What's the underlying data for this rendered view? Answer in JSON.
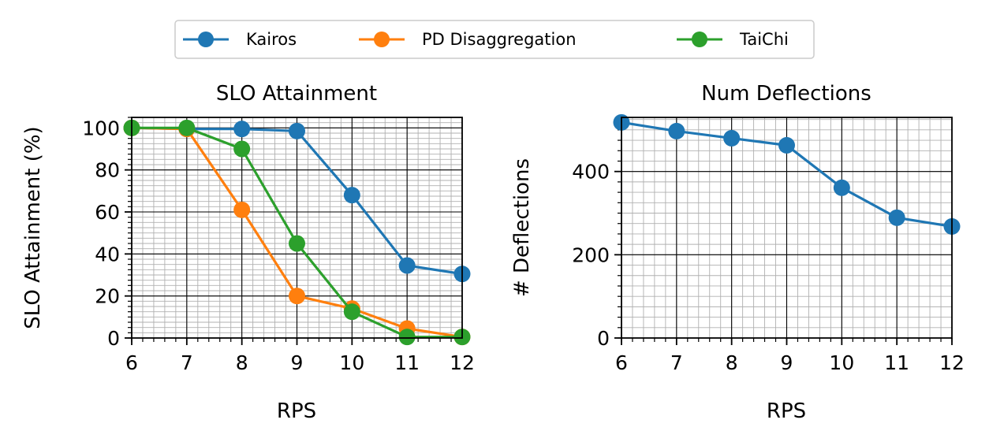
{
  "legend": {
    "placement": "top-center",
    "entries": [
      {
        "label": "Kairos",
        "color": "#1f77b4"
      },
      {
        "label": "PD Disaggregation",
        "color": "#ff7f0e"
      },
      {
        "label": "TaiChi",
        "color": "#2ca02c"
      }
    ]
  },
  "chart_data": [
    {
      "type": "line",
      "title": "SLO Attainment",
      "xlabel": "RPS",
      "ylabel": "SLO Attainment (%)",
      "xlim": [
        6,
        12
      ],
      "ylim": [
        0,
        105
      ],
      "xticks": [
        6,
        7,
        8,
        9,
        10,
        11,
        12
      ],
      "xtick_labels": [
        "6",
        "7",
        "8",
        "9",
        "10",
        "11",
        "12"
      ],
      "yticks": [
        0,
        20,
        40,
        60,
        80,
        100
      ],
      "ytick_labels": [
        "0",
        "20",
        "40",
        "60",
        "80",
        "100"
      ],
      "grid": true,
      "x": [
        6,
        7,
        8,
        9,
        10,
        11,
        12
      ],
      "series": [
        {
          "name": "Kairos",
          "color": "#1f77b4",
          "values": [
            100,
            99.5,
            99.5,
            98.5,
            68,
            34.5,
            30.5
          ]
        },
        {
          "name": "PD Disaggregation",
          "color": "#ff7f0e",
          "values": [
            100,
            99.5,
            61,
            20,
            14,
            4.5,
            0.5
          ]
        },
        {
          "name": "TaiChi",
          "color": "#2ca02c",
          "values": [
            100,
            100,
            90,
            45,
            12.5,
            0.5,
            0.5
          ]
        }
      ]
    },
    {
      "type": "line",
      "title": "Num Deflections",
      "xlabel": "RPS",
      "ylabel": "# Deflections",
      "xlim": [
        6,
        12
      ],
      "ylim": [
        0,
        530
      ],
      "xticks": [
        6,
        7,
        8,
        9,
        10,
        11,
        12
      ],
      "xtick_labels": [
        "6",
        "7",
        "8",
        "9",
        "10",
        "11",
        "12"
      ],
      "yticks": [
        0,
        200,
        400
      ],
      "ytick_labels": [
        "0",
        "200",
        "400"
      ],
      "grid": true,
      "x": [
        6,
        7,
        8,
        9,
        10,
        11,
        12
      ],
      "series": [
        {
          "name": "Kairos",
          "color": "#1f77b4",
          "values": [
            518,
            497,
            480,
            463,
            361,
            289,
            268
          ]
        }
      ]
    }
  ]
}
